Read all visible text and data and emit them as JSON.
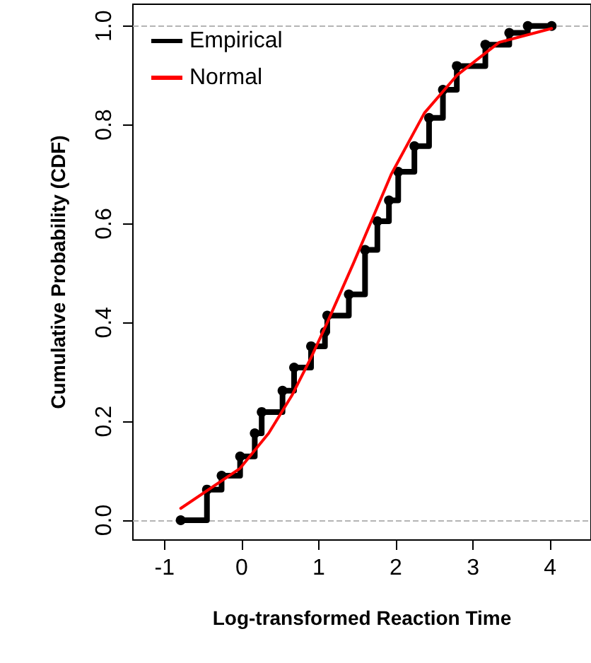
{
  "chart_data": {
    "type": "line",
    "xlabel": "Log-transformed Reaction Time",
    "ylabel": "Cumulative Probability (CDF)",
    "xlim": [
      -1.41,
      4.53
    ],
    "xticks": [
      -1,
      0,
      1,
      2,
      3,
      4
    ],
    "ylim": [
      -0.04,
      1.044
    ],
    "yticks": [
      {
        "value": 0,
        "label": "0.0"
      },
      0.2,
      0.4,
      0.6,
      0.8,
      {
        "value": 1,
        "label": "1.0"
      }
    ],
    "legend": "top left",
    "grid": false,
    "ref_lines": [
      {
        "axis": "y",
        "value": 0,
        "label": null,
        "color": "#b4b4b4",
        "line_style": "dashed"
      },
      {
        "axis": "y",
        "value": 1,
        "label": null,
        "color": "#b4b4b4",
        "line_style": "dashed"
      }
    ],
    "series": [
      {
        "name": "Empirical",
        "type": "step",
        "color": "#000000",
        "marker": "circle",
        "x": [
          -0.79,
          -0.45,
          -0.26,
          -0.02,
          0.17,
          0.26,
          0.53,
          0.68,
          0.9,
          1.08,
          1.11,
          1.39,
          1.6,
          1.76,
          1.91,
          2.03,
          2.24,
          2.43,
          2.61,
          2.79,
          3.16,
          3.47,
          3.71,
          4.02
        ],
        "values": [
          0,
          0.062,
          0.09,
          0.129,
          0.176,
          0.219,
          0.262,
          0.309,
          0.352,
          0.381,
          0.414,
          0.457,
          0.547,
          0.605,
          0.647,
          0.705,
          0.757,
          0.814,
          0.871,
          0.919,
          0.962,
          0.986,
          1.0,
          1.0
        ]
      },
      {
        "name": "Normal",
        "color": "#ff0000",
        "marker": "none",
        "x": [
          -0.79,
          -0.02,
          0.35,
          0.65,
          0.9,
          1.11,
          1.45,
          1.94,
          2.37,
          2.79,
          3.34,
          4.02
        ],
        "values": [
          0.024,
          0.105,
          0.176,
          0.252,
          0.329,
          0.4,
          0.52,
          0.7,
          0.824,
          0.9,
          0.967,
          0.995
        ]
      }
    ]
  }
}
